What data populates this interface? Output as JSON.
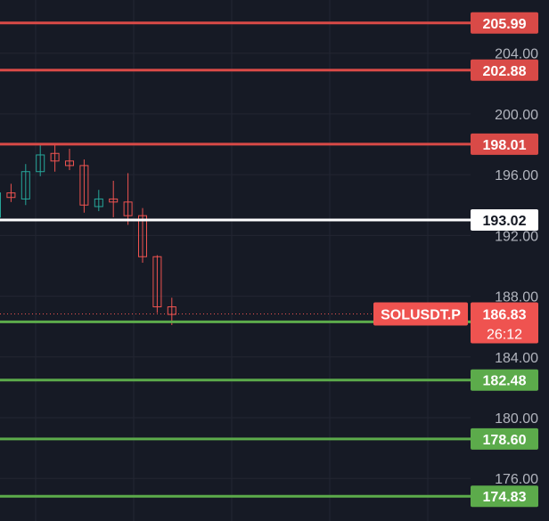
{
  "chart_data": {
    "type": "candlestick",
    "symbol": "SOLUSDT.P",
    "current_price": 186.83,
    "countdown": "26:12",
    "ylim": [
      173.2,
      207.5
    ],
    "y_ticks": [
      "176.00",
      "180.00",
      "184.00",
      "188.00",
      "192.00",
      "196.00",
      "200.00",
      "204.00"
    ],
    "grid": true,
    "levels": [
      {
        "value": "205.99",
        "kind": "resistance"
      },
      {
        "value": "202.88",
        "kind": "resistance"
      },
      {
        "value": "198.01",
        "kind": "resistance"
      },
      {
        "value": "193.02",
        "kind": "pivot"
      },
      {
        "value": "186.31",
        "kind": "support"
      },
      {
        "value": "182.48",
        "kind": "support"
      },
      {
        "value": "178.60",
        "kind": "support"
      },
      {
        "value": "174.83",
        "kind": "support"
      }
    ],
    "candles": [
      {
        "o": 193.2,
        "h": 195.0,
        "l": 193.0,
        "c": 194.8
      },
      {
        "o": 194.8,
        "h": 195.4,
        "l": 194.2,
        "c": 194.5
      },
      {
        "o": 194.4,
        "h": 196.7,
        "l": 194.0,
        "c": 196.2
      },
      {
        "o": 196.2,
        "h": 198.0,
        "l": 195.9,
        "c": 197.3
      },
      {
        "o": 197.4,
        "h": 198.0,
        "l": 196.2,
        "c": 196.9
      },
      {
        "o": 196.9,
        "h": 197.7,
        "l": 196.3,
        "c": 196.6
      },
      {
        "o": 196.6,
        "h": 197.0,
        "l": 193.5,
        "c": 194.0
      },
      {
        "o": 193.9,
        "h": 195.0,
        "l": 193.6,
        "c": 194.4
      },
      {
        "o": 194.4,
        "h": 195.6,
        "l": 193.2,
        "c": 194.2
      },
      {
        "o": 194.2,
        "h": 196.1,
        "l": 192.7,
        "c": 193.3
      },
      {
        "o": 193.3,
        "h": 193.8,
        "l": 190.2,
        "c": 190.6
      },
      {
        "o": 190.6,
        "h": 190.7,
        "l": 186.9,
        "c": 187.3
      },
      {
        "o": 187.3,
        "h": 187.9,
        "l": 186.1,
        "c": 186.8
      }
    ],
    "colors": {
      "background": "#161a25",
      "grid": "#232632",
      "up": "#26a69a",
      "down": "#ef5350",
      "resistance": "#d94a47",
      "pivot": "#ffffff",
      "support": "#5cab4b",
      "tick_text": "#b2b5be"
    }
  }
}
